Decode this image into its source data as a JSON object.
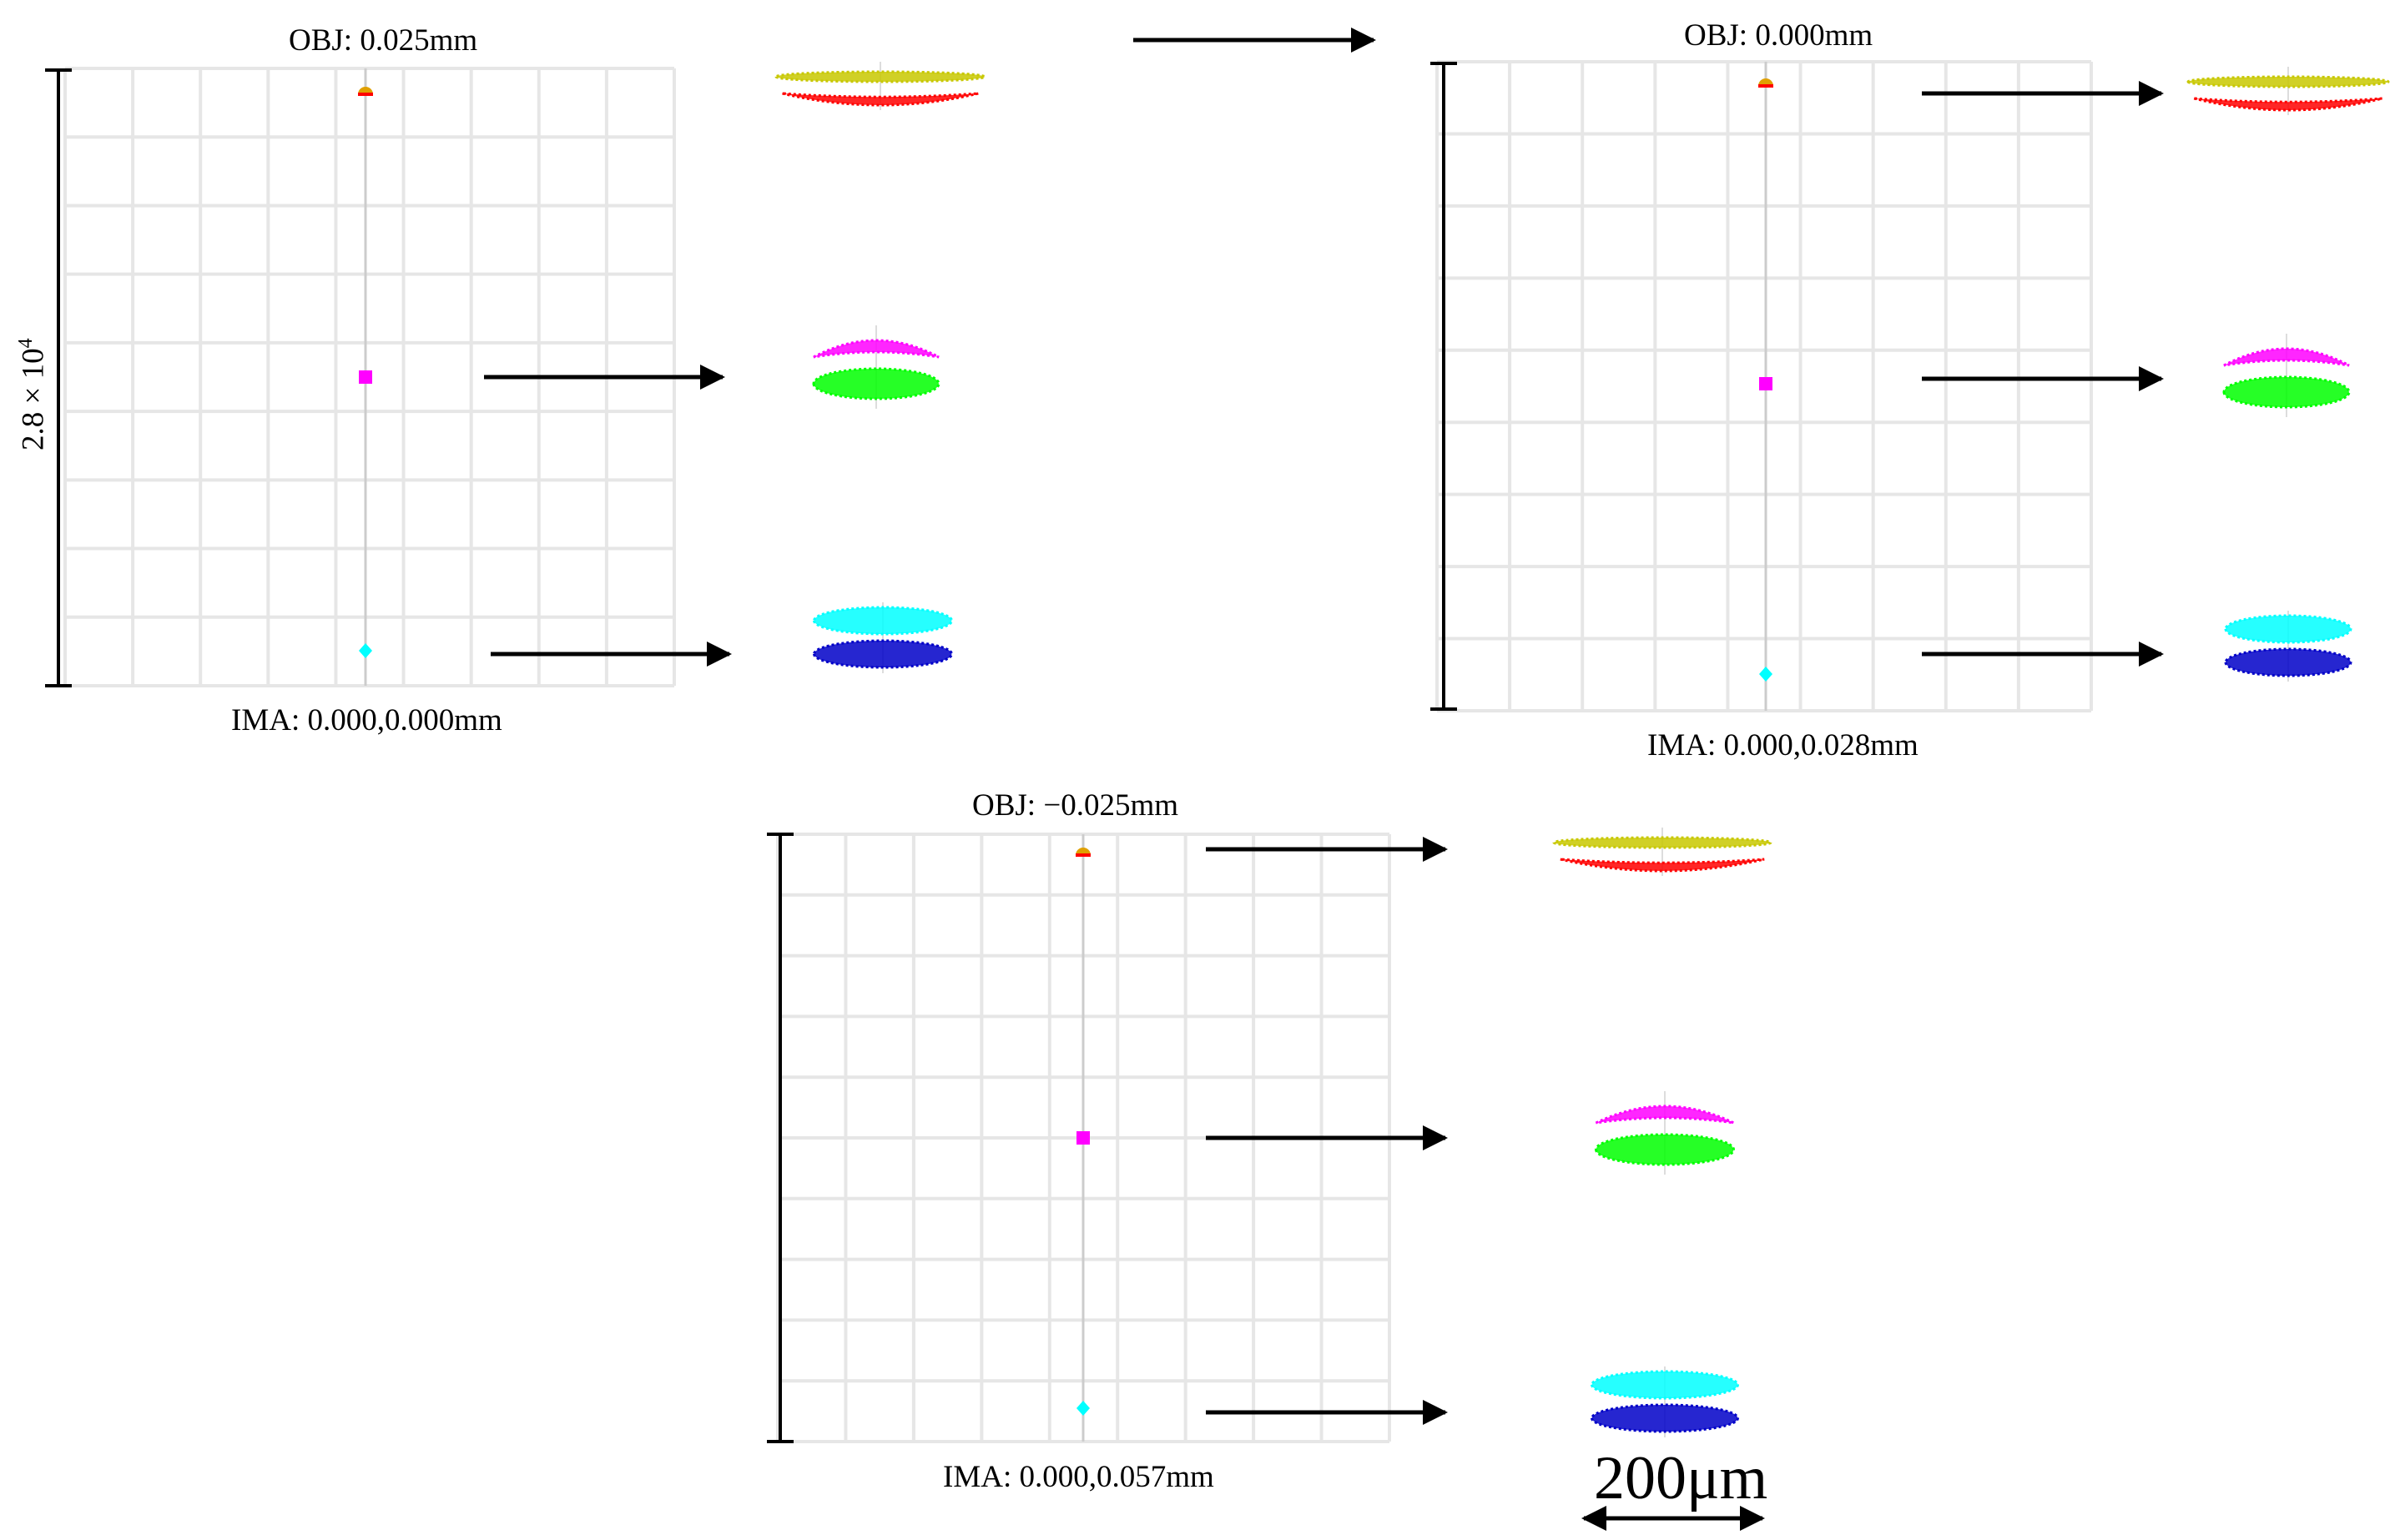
{
  "panels": [
    {
      "id": "panel-1",
      "obj_label": "OBJ: 0.025mm",
      "ima_label": "IMA: 0.000,0.000mm",
      "scale_label_base": "2.8 × 10",
      "scale_label_exp": "4"
    },
    {
      "id": "panel-2",
      "obj_label": "OBJ: 0.000mm",
      "ima_label": "IMA: 0.000,0.028mm"
    },
    {
      "id": "panel-3",
      "obj_label": "OBJ: −0.025mm",
      "ima_label": "IMA: 0.000,0.057mm"
    }
  ],
  "scale_bar": {
    "label": "200μm"
  },
  "spot_colors": {
    "yellow": "#c8c800",
    "red": "#ff0000",
    "magenta": "#ff00ff",
    "green": "#00ff00",
    "cyan": "#00ffff",
    "blue": "#0000c8",
    "grid": "#e6e6e6"
  }
}
